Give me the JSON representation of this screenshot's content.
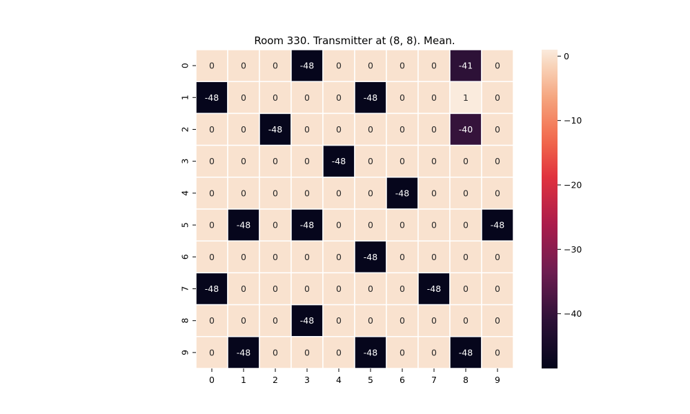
{
  "chart_data": {
    "type": "heatmap",
    "title": "Room 330. Transmitter at (8, 8). Mean.",
    "x_categories": [
      "0",
      "1",
      "2",
      "3",
      "4",
      "5",
      "6",
      "7",
      "8",
      "9"
    ],
    "y_categories": [
      "0",
      "1",
      "2",
      "3",
      "4",
      "5",
      "6",
      "7",
      "8",
      "9"
    ],
    "values": [
      [
        0,
        0,
        0,
        -48,
        0,
        0,
        0,
        0,
        -41,
        0
      ],
      [
        -48,
        0,
        0,
        0,
        0,
        -48,
        0,
        0,
        1,
        0
      ],
      [
        0,
        0,
        -48,
        0,
        0,
        0,
        0,
        0,
        -40,
        0
      ],
      [
        0,
        0,
        0,
        0,
        -48,
        0,
        0,
        0,
        0,
        0
      ],
      [
        0,
        0,
        0,
        0,
        0,
        0,
        -48,
        0,
        0,
        0
      ],
      [
        0,
        -48,
        0,
        -48,
        0,
        0,
        0,
        0,
        0,
        -48
      ],
      [
        0,
        0,
        0,
        0,
        0,
        -48,
        0,
        0,
        0,
        0
      ],
      [
        -48,
        0,
        0,
        0,
        0,
        0,
        0,
        -48,
        0,
        0
      ],
      [
        0,
        0,
        0,
        -48,
        0,
        0,
        0,
        0,
        0,
        0
      ],
      [
        0,
        -48,
        0,
        0,
        0,
        -48,
        0,
        0,
        -48,
        0
      ]
    ],
    "vmin": -48.5,
    "vmax": 1,
    "colormap": "rocket",
    "colorbar_ticks": [
      0,
      -10,
      -20,
      -30,
      -40
    ],
    "colorbar_tick_labels": [
      "0",
      "−10",
      "−20",
      "−30",
      "−40"
    ],
    "annotated": true,
    "grid": false,
    "cell_border_color": "#ffffff"
  }
}
